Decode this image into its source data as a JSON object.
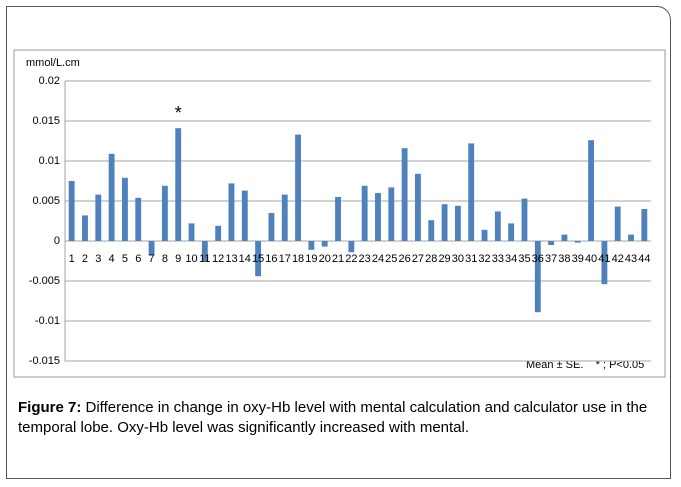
{
  "chart_data": {
    "type": "bar",
    "y_label": "mmol/L.cm",
    "categories": [
      "1",
      "2",
      "3",
      "4",
      "5",
      "6",
      "7",
      "8",
      "9",
      "10",
      "11",
      "12",
      "13",
      "14",
      "15",
      "16",
      "17",
      "18",
      "19",
      "20",
      "21",
      "22",
      "23",
      "24",
      "25",
      "26",
      "27",
      "28",
      "29",
      "30",
      "31",
      "32",
      "33",
      "34",
      "35",
      "36",
      "37",
      "38",
      "39",
      "40",
      "41",
      "42",
      "43",
      "44"
    ],
    "values": [
      0.0075,
      0.0032,
      0.0058,
      0.0109,
      0.0079,
      0.0054,
      -0.0018,
      0.0069,
      0.0141,
      0.0022,
      -0.0025,
      0.0019,
      0.0072,
      0.0063,
      -0.0044,
      0.0035,
      0.0058,
      0.0133,
      -0.0011,
      -0.0007,
      0.0055,
      -0.0014,
      0.0069,
      0.006,
      0.0067,
      0.0116,
      0.0084,
      0.0026,
      0.0046,
      0.0044,
      0.0122,
      0.0014,
      0.0037,
      0.0022,
      0.0053,
      -0.0089,
      -0.0005,
      0.0008,
      -0.0002,
      0.0126,
      -0.0054,
      0.0043,
      0.0008,
      0.004
    ],
    "color": "#4f81bd",
    "ylim": [
      -0.015,
      0.02
    ],
    "yticks": [
      0.02,
      0.015,
      0.01,
      0.005,
      0,
      -0.005,
      -0.01,
      -0.015
    ],
    "grid": true,
    "annotations": [
      {
        "text": "*",
        "category": "9"
      }
    ],
    "note": "Mean ± SE.    * ; P<0.05"
  },
  "caption": {
    "label": "Figure 7:",
    "text": " Difference in change in oxy-Hb level with mental calculation and calculator use in the temporal lobe. Oxy-Hb level was significantly increased with mental."
  }
}
